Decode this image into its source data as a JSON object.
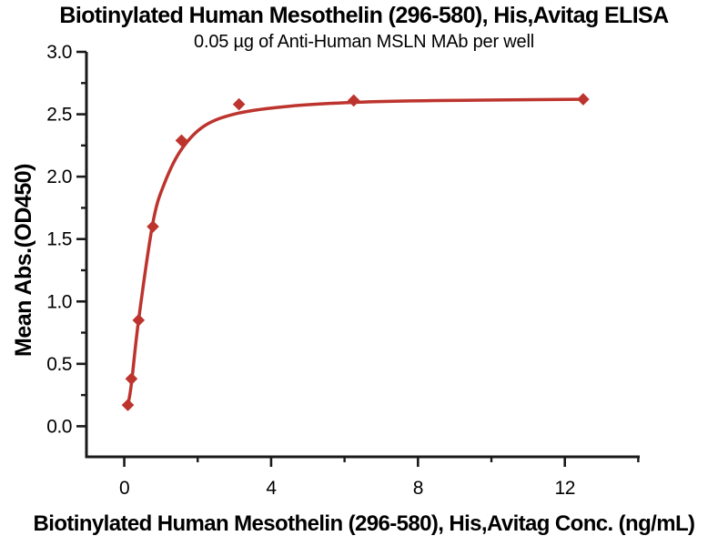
{
  "chart_data": {
    "type": "scatter",
    "title": "Biotinylated Human Mesothelin (296-580), His,Avitag ELISA",
    "subtitle": "0.05 µg of Anti-Human MSLN MAb per well",
    "xlabel": "Biotinylated Human Mesothelin (296-580), His,Avitag Conc. (ng/mL)",
    "ylabel": "Mean Abs.(OD450)",
    "xlim": [
      -1.03,
      14.04
    ],
    "ylim": [
      -0.245,
      3.0
    ],
    "x_major_ticks": [
      0,
      4,
      8,
      12
    ],
    "x_minor_ticks": [
      2,
      6,
      10,
      14
    ],
    "y_major_ticks": [
      0.0,
      0.5,
      1.0,
      1.5,
      2.0,
      2.5,
      3.0
    ],
    "y_minor_ticks": [
      0.25,
      0.75,
      1.25,
      1.75,
      2.25,
      2.75
    ],
    "grid": false,
    "legend": "none",
    "axis_color": "#1a1a1a",
    "series": [
      {
        "name": "Mean Abs.(OD450)",
        "marker": "diamond",
        "color": "#bd342e",
        "x": [
          0.098,
          0.195,
          0.39,
          0.78,
          1.56,
          3.125,
          6.25,
          12.5
        ],
        "y": [
          0.17,
          0.38,
          0.85,
          1.6,
          2.29,
          2.58,
          2.61,
          2.62
        ]
      }
    ],
    "fit_curve": {
      "color": "#bd342e",
      "points": [
        [
          0.098,
          0.17
        ],
        [
          0.195,
          0.34
        ],
        [
          0.39,
          0.85
        ],
        [
          0.78,
          1.63
        ],
        [
          1.1,
          1.95
        ],
        [
          1.56,
          2.22
        ],
        [
          2.2,
          2.41
        ],
        [
          3.125,
          2.51
        ],
        [
          4.5,
          2.565
        ],
        [
          6.25,
          2.595
        ],
        [
          8.5,
          2.61
        ],
        [
          10.5,
          2.615
        ],
        [
          12.5,
          2.62
        ]
      ]
    }
  }
}
